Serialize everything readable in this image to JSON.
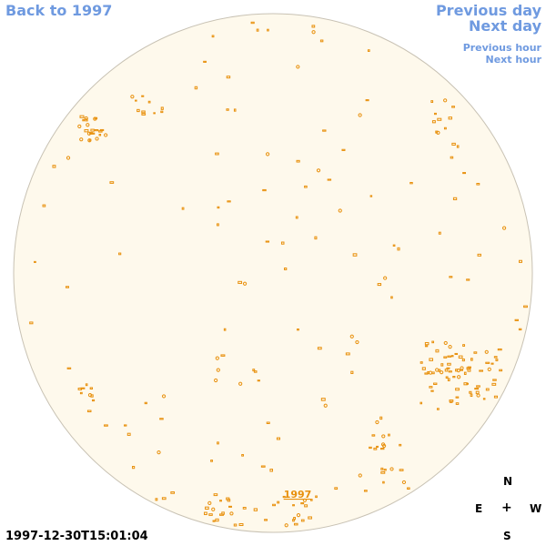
{
  "nav": {
    "back": "Back to 1997",
    "previous_day": "Previous day",
    "next_day": "Next day",
    "previous_hour": "Previous hour",
    "next_hour": "Next hour"
  },
  "disc": {
    "label": "1997",
    "fill_color": "#fef9ec",
    "edge_color": "#c8c2b4",
    "marker_color": "#e8900c"
  },
  "timestamp": "1997-12-30T15:01:04",
  "compass": {
    "n": "N",
    "e": "E",
    "center": "+",
    "w": "W",
    "s": "S"
  }
}
